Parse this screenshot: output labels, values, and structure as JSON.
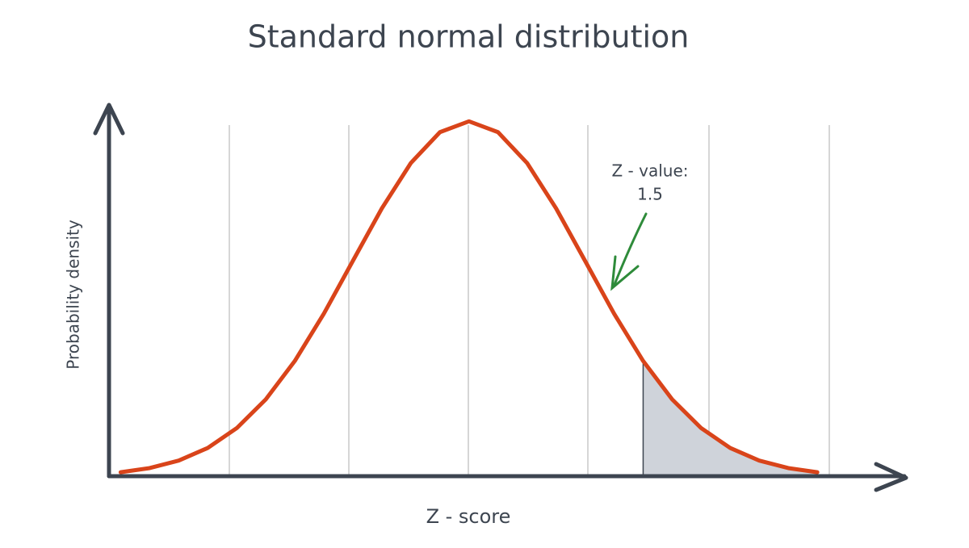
{
  "chart_data": {
    "type": "line",
    "title": "Standard normal distribution",
    "x_label": "Z - score",
    "y_label": "Probability density",
    "annotation": "Z - value:",
    "z_value": 1.5,
    "xlim": [
      -3.1,
      3.75
    ],
    "ylim": [
      0,
      0.45
    ],
    "series": [
      {
        "color": "#d9441a",
        "x": [
          -3,
          -2.75,
          -2.5,
          -2.25,
          -2,
          -1.75,
          -1.5,
          -1.25,
          -1,
          -0.75,
          -0.5,
          -0.25,
          0,
          0.25,
          0.5,
          0.75,
          1,
          1.25,
          1.5,
          1.75,
          2,
          2.25,
          2.5,
          2.75,
          3
        ],
        "values": [
          0.0044,
          0.0091,
          0.0175,
          0.0317,
          0.054,
          0.0863,
          0.1295,
          0.1826,
          0.242,
          0.3011,
          0.3521,
          0.3867,
          0.3989,
          0.3867,
          0.3521,
          0.3011,
          0.242,
          0.1826,
          0.1295,
          0.0863,
          0.054,
          0.0317,
          0.0175,
          0.0091,
          0.0044
        ]
      }
    ],
    "shade_color": "#cfd3da"
  }
}
